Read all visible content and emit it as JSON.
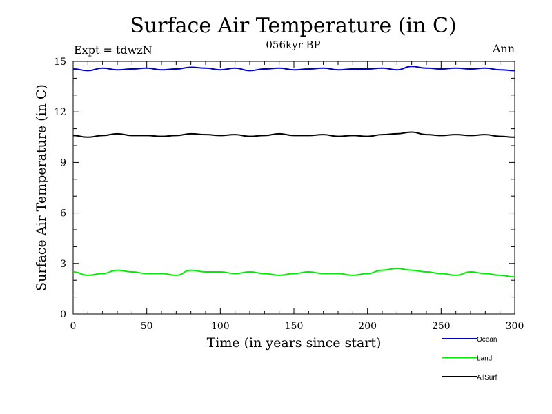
{
  "chart_data": {
    "type": "line",
    "title": "Surface Air Temperature (in C)",
    "subtitle": "056kyr BP",
    "top_left_label": "Expt = tdwzN",
    "top_right_label": "Ann",
    "xlabel": "Time (in years since start)",
    "ylabel": "Surface Air Temperature (in C)",
    "xlim": [
      0,
      300
    ],
    "ylim": [
      0,
      15
    ],
    "x_ticks": [
      0,
      50,
      100,
      150,
      200,
      250,
      300
    ],
    "y_ticks": [
      0,
      3,
      6,
      9,
      12,
      15
    ],
    "grid": false,
    "legend_position": "bottom-right",
    "x": [
      0,
      10,
      20,
      30,
      40,
      50,
      60,
      70,
      80,
      90,
      100,
      110,
      120,
      130,
      140,
      150,
      160,
      170,
      180,
      190,
      200,
      210,
      220,
      230,
      240,
      250,
      260,
      270,
      280,
      290,
      300
    ],
    "series": [
      {
        "name": "Ocean",
        "color": "#0000cc",
        "values": [
          14.55,
          14.45,
          14.6,
          14.5,
          14.55,
          14.6,
          14.5,
          14.55,
          14.65,
          14.6,
          14.5,
          14.6,
          14.45,
          14.55,
          14.6,
          14.5,
          14.55,
          14.6,
          14.5,
          14.55,
          14.55,
          14.6,
          14.5,
          14.7,
          14.6,
          14.55,
          14.6,
          14.55,
          14.6,
          14.5,
          14.45
        ]
      },
      {
        "name": "Land",
        "color": "#00ee00",
        "values": [
          2.5,
          2.3,
          2.4,
          2.6,
          2.5,
          2.4,
          2.4,
          2.3,
          2.6,
          2.5,
          2.5,
          2.4,
          2.5,
          2.4,
          2.3,
          2.4,
          2.5,
          2.4,
          2.4,
          2.3,
          2.4,
          2.6,
          2.7,
          2.6,
          2.5,
          2.4,
          2.3,
          2.5,
          2.4,
          2.3,
          2.2
        ]
      },
      {
        "name": "AllSurf",
        "color": "#000000",
        "values": [
          10.6,
          10.5,
          10.6,
          10.7,
          10.6,
          10.6,
          10.55,
          10.6,
          10.7,
          10.65,
          10.6,
          10.65,
          10.55,
          10.6,
          10.7,
          10.6,
          10.6,
          10.65,
          10.55,
          10.6,
          10.55,
          10.65,
          10.7,
          10.8,
          10.65,
          10.6,
          10.65,
          10.6,
          10.65,
          10.55,
          10.5
        ]
      }
    ]
  }
}
